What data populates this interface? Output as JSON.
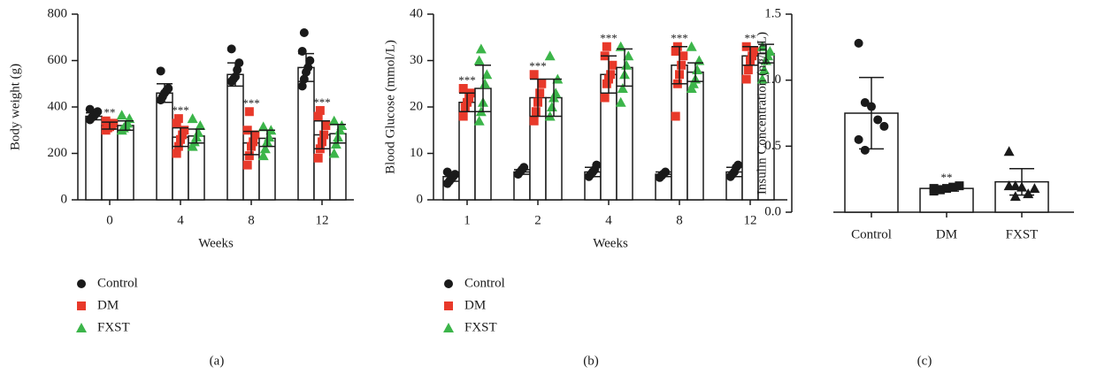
{
  "chart_data": [
    {
      "type": "bar",
      "caption": "(a)",
      "xlabel": "Weeks",
      "ylabel": "Body weight (g)",
      "categories": [
        "0",
        "4",
        "8",
        "12"
      ],
      "ylim": [
        0,
        800
      ],
      "yticks": [
        0,
        200,
        400,
        600,
        800
      ],
      "series": [
        {
          "name": "Control",
          "color": "#1a1a1a",
          "marker": "circle",
          "values": [
            360,
            460,
            540,
            570
          ],
          "errors": [
            15,
            40,
            50,
            60
          ],
          "points": [
            [
              345,
              355,
              360,
              370,
              380,
              390
            ],
            [
              430,
              445,
              460,
              470,
              480,
              555
            ],
            [
              510,
              520,
              530,
              560,
              590,
              650
            ],
            [
              490,
              520,
              550,
              570,
              600,
              640,
              720
            ]
          ]
        },
        {
          "name": "DM",
          "color": "#e8392a",
          "marker": "square",
          "values": [
            320,
            270,
            245,
            280
          ],
          "errors": [
            15,
            40,
            50,
            60
          ],
          "points": [
            [
              300,
              310,
              315,
              320,
              330,
              340
            ],
            [
              200,
              230,
              260,
              280,
              300,
              330,
              350
            ],
            [
              150,
              190,
              230,
              250,
              280,
              300,
              380
            ],
            [
              180,
              220,
              250,
              280,
              320,
              360,
              385
            ]
          ],
          "significance": [
            "**",
            "***",
            "***",
            "***"
          ]
        },
        {
          "name": "FXST",
          "color": "#3cb54a",
          "marker": "triangle",
          "values": [
            320,
            275,
            265,
            285
          ],
          "errors": [
            20,
            30,
            35,
            40
          ],
          "points": [
            [
              300,
              310,
              320,
              330,
              350,
              365
            ],
            [
              230,
              250,
              270,
              290,
              320,
              350
            ],
            [
              190,
              220,
              250,
              270,
              300,
              315
            ],
            [
              200,
              240,
              270,
              300,
              320,
              340
            ]
          ]
        }
      ]
    },
    {
      "type": "bar",
      "caption": "(b)",
      "xlabel": "Weeks",
      "ylabel": "Blood Glucose (mmol/L)",
      "categories": [
        "1",
        "2",
        "4",
        "8",
        "12"
      ],
      "ylim": [
        0,
        40
      ],
      "yticks": [
        0,
        10,
        20,
        30,
        40
      ],
      "series": [
        {
          "name": "Control",
          "color": "#1a1a1a",
          "marker": "circle",
          "values": [
            5,
            6,
            6,
            5.5,
            6
          ],
          "errors": [
            1,
            0.5,
            1,
            0.5,
            1
          ],
          "points": [
            [
              3.5,
              4,
              4.5,
              5,
              5.5,
              6
            ],
            [
              5.5,
              6,
              6.5,
              7
            ],
            [
              5,
              5.5,
              6,
              6.5,
              7.5
            ],
            [
              4.8,
              5.2,
              5.6,
              6
            ],
            [
              5,
              5.5,
              6,
              7,
              7.5
            ]
          ]
        },
        {
          "name": "DM",
          "color": "#e8392a",
          "marker": "square",
          "values": [
            21,
            22,
            27,
            29,
            31
          ],
          "errors": [
            2,
            4,
            4,
            4,
            2
          ],
          "points": [
            [
              18,
              20,
              21,
              22,
              23,
              24
            ],
            [
              17,
              19,
              21,
              23,
              25,
              27
            ],
            [
              22,
              25,
              26,
              27,
              29,
              31,
              33
            ],
            [
              18,
              25,
              27,
              29,
              31,
              32,
              33
            ],
            [
              26,
              28,
              30,
              31,
              32,
              33
            ]
          ],
          "significance": [
            "***",
            "***",
            "***",
            "***",
            "**"
          ]
        },
        {
          "name": "FXST",
          "color": "#3cb54a",
          "marker": "triangle",
          "values": [
            24,
            22,
            28.5,
            27.5,
            31.5
          ],
          "errors": [
            5,
            4,
            4,
            2,
            2
          ],
          "points": [
            [
              17,
              19,
              21,
              25,
              27,
              30,
              32.5
            ],
            [
              18,
              20,
              22,
              23,
              26,
              31
            ],
            [
              21,
              24,
              27,
              29,
              31,
              33
            ],
            [
              24,
              25,
              26,
              28,
              30,
              33
            ],
            [
              26,
              28,
              30,
              31,
              32,
              33
            ]
          ]
        }
      ]
    },
    {
      "type": "bar",
      "caption": "(c)",
      "ylabel": "Insulin Concentration (ng/mL)",
      "categories": [
        "Control",
        "DM",
        "FXST"
      ],
      "ylim": [
        0,
        1.5
      ],
      "yticks": [
        {
          "value": 0,
          "label": "0.0"
        },
        0.5,
        {
          "value": 1,
          "label": "1.0"
        },
        1.5
      ],
      "color": "#1a1a1a",
      "markers": [
        "circle",
        "square",
        "triangle"
      ],
      "values": [
        0.75,
        0.18,
        0.23
      ],
      "errors": [
        0.27,
        0.02,
        0.1
      ],
      "points": [
        [
          1.28,
          0.83,
          0.8,
          0.7,
          0.65,
          0.55,
          0.47
        ],
        [
          0.16,
          0.17,
          0.18,
          0.19,
          0.2,
          0.18,
          0.17
        ],
        [
          0.46,
          0.2,
          0.19,
          0.14,
          0.18,
          0.2,
          0.12
        ]
      ],
      "significance": [
        null,
        "**",
        null
      ]
    }
  ]
}
